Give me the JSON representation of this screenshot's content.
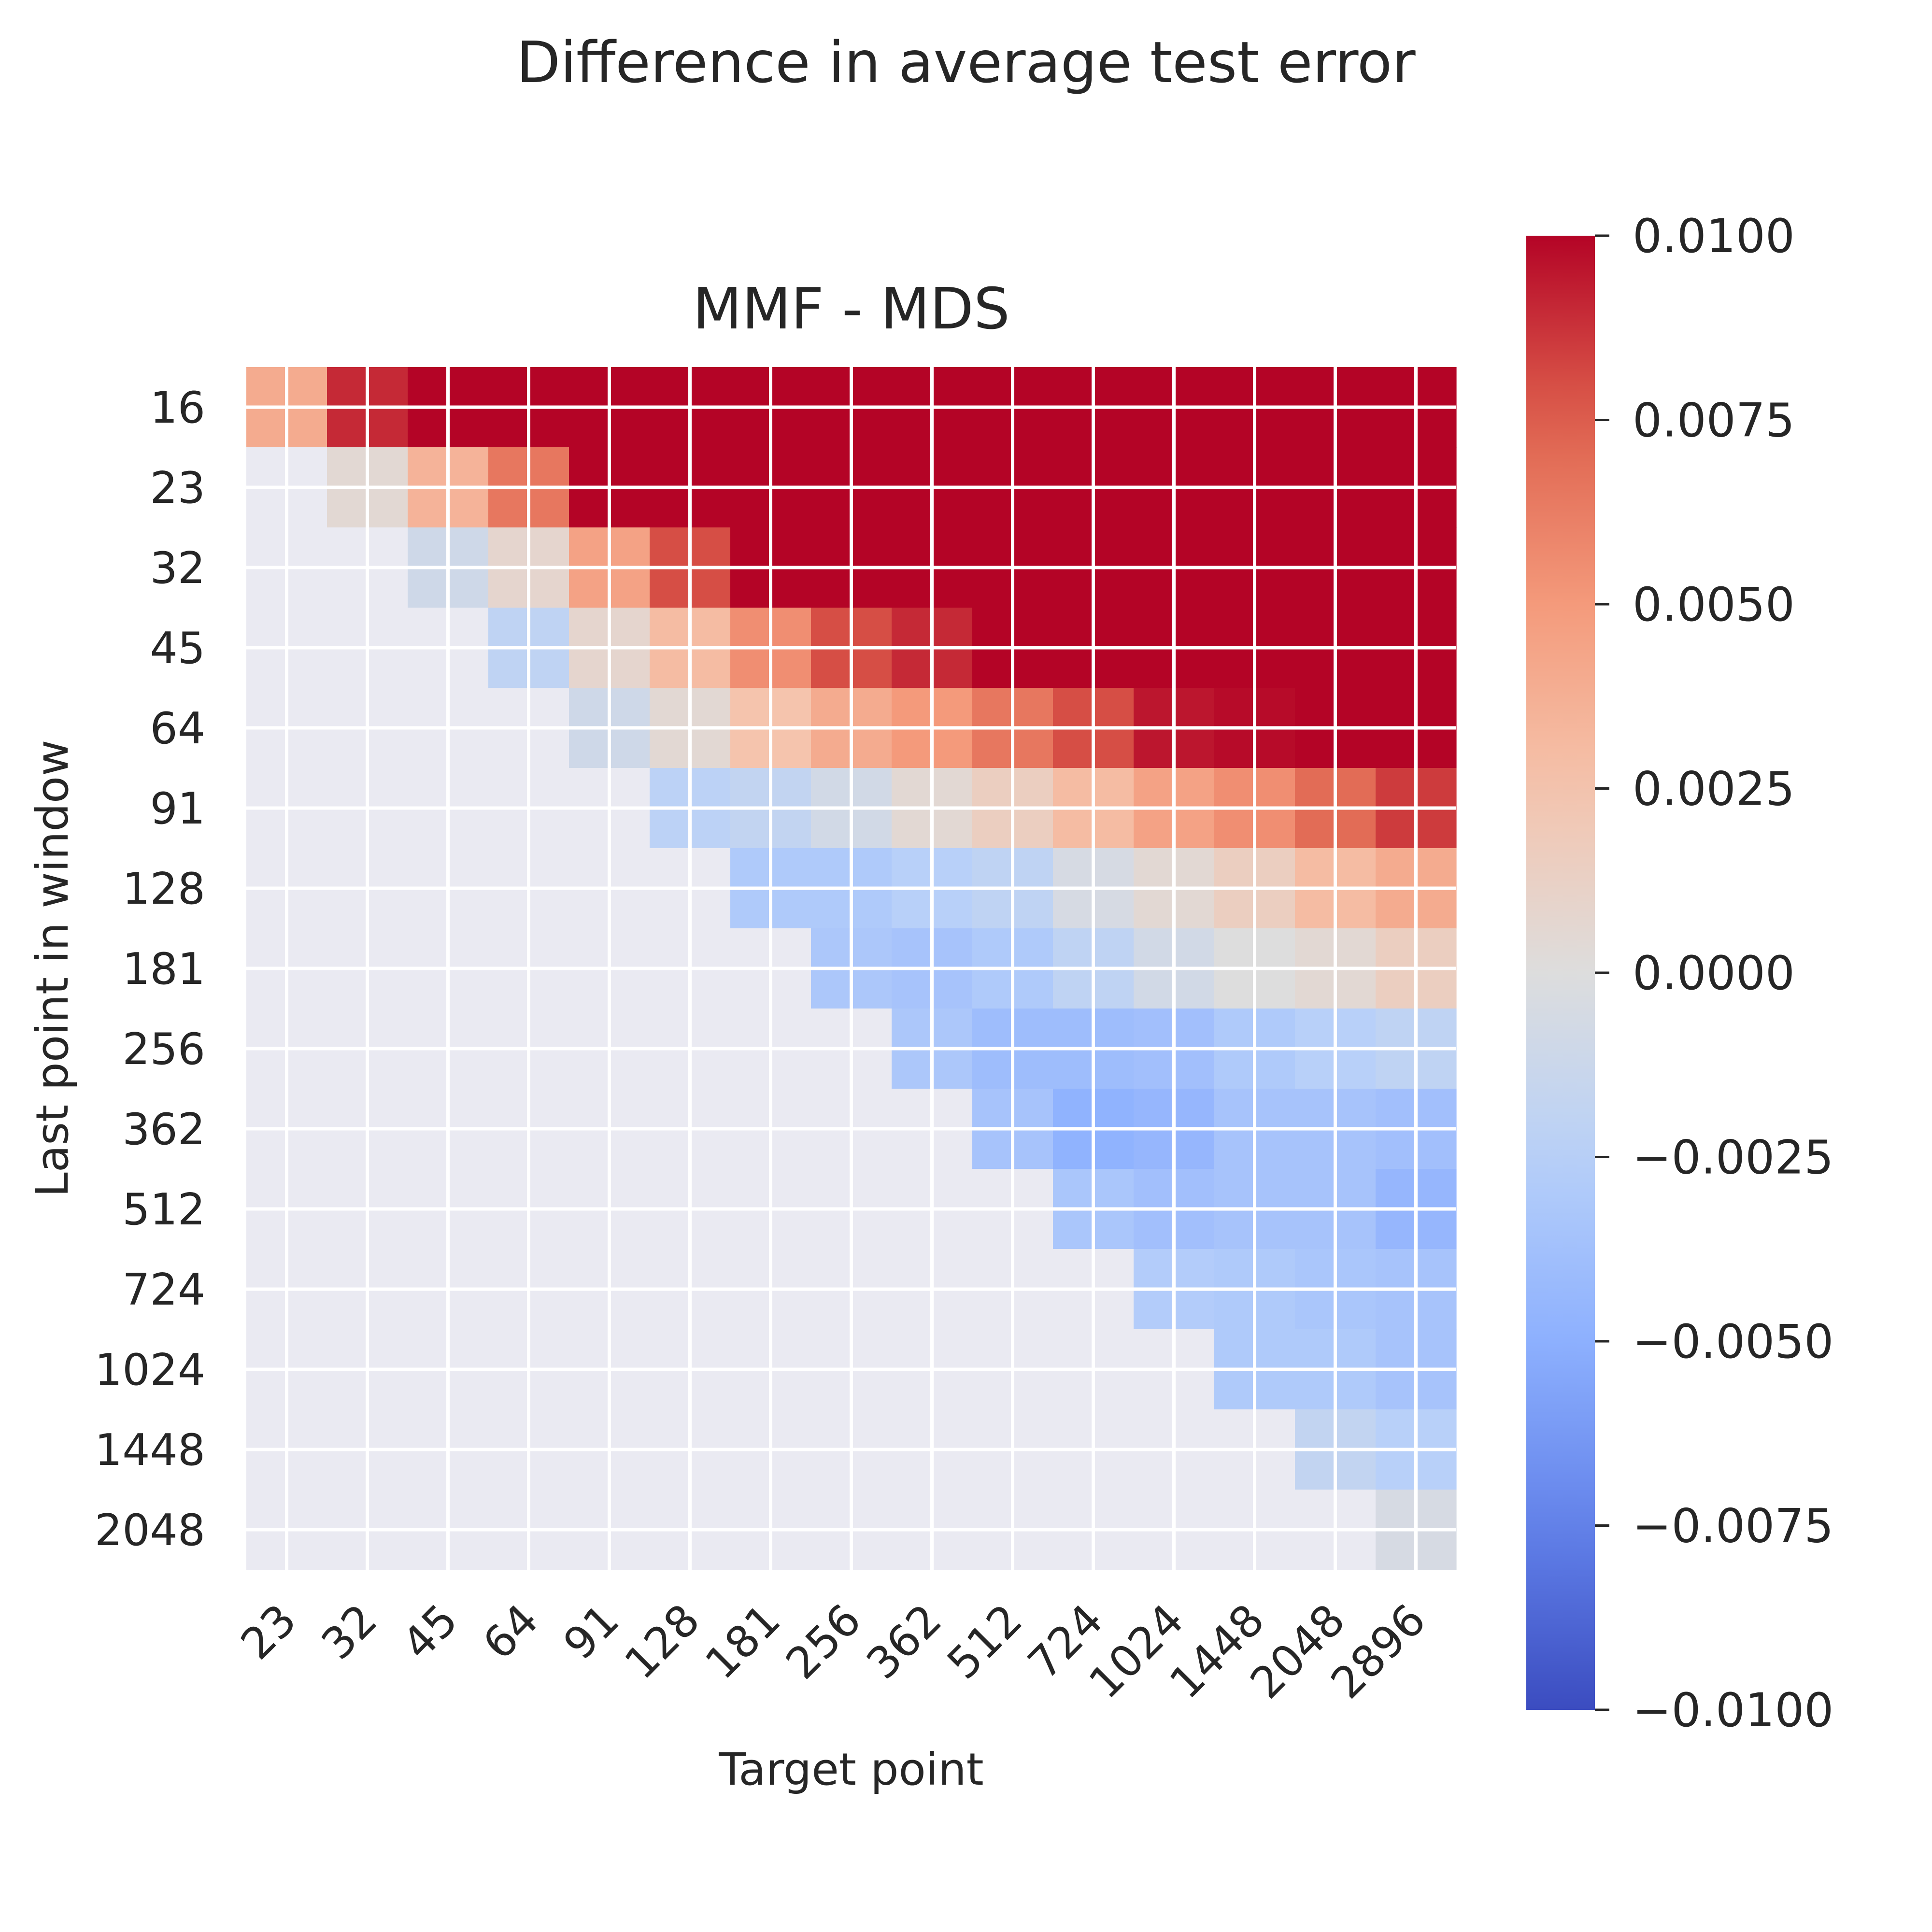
{
  "chart_data": {
    "type": "heatmap",
    "suptitle": "Difference in average test error",
    "title": "MMF - MDS",
    "xlabel": "Target point",
    "ylabel": "Last point in window",
    "x_tick_labels": [
      "23",
      "32",
      "45",
      "64",
      "91",
      "128",
      "181",
      "256",
      "362",
      "512",
      "724",
      "1024",
      "1448",
      "2048",
      "2896"
    ],
    "y_tick_labels": [
      "16",
      "23",
      "32",
      "45",
      "64",
      "91",
      "128",
      "181",
      "256",
      "362",
      "512",
      "724",
      "1024",
      "1448",
      "2048"
    ],
    "colorbar": {
      "colormap": "coolwarm",
      "vmin": -0.01,
      "vmax": 0.01,
      "tick_labels": [
        "0.0100",
        "0.0075",
        "0.0050",
        "0.0025",
        "0.0000",
        "−0.0025",
        "−0.0050",
        "−0.0075",
        "−0.0100"
      ],
      "tick_values": [
        0.01,
        0.0075,
        0.005,
        0.0025,
        0.0,
        -0.0025,
        -0.005,
        -0.0075,
        -0.01
      ]
    },
    "grid": true,
    "missing_color": "#eaeaf2",
    "values": [
      [
        0.004,
        0.009,
        0.01,
        0.01,
        0.01,
        0.01,
        0.01,
        0.01,
        0.01,
        0.01,
        0.01,
        0.01,
        0.01,
        0.01,
        0.01
      ],
      [
        null,
        0.0005,
        0.0035,
        0.0065,
        0.01,
        0.01,
        0.01,
        0.01,
        0.01,
        0.01,
        0.01,
        0.01,
        0.01,
        0.01,
        0.01
      ],
      [
        null,
        null,
        -0.001,
        0.0008,
        0.0045,
        0.008,
        0.01,
        0.01,
        0.01,
        0.01,
        0.01,
        0.01,
        0.01,
        0.01,
        0.01
      ],
      [
        null,
        null,
        null,
        -0.002,
        0.0008,
        0.003,
        0.0055,
        0.008,
        0.009,
        0.01,
        0.01,
        0.01,
        0.01,
        0.01,
        0.01
      ],
      [
        null,
        null,
        null,
        null,
        -0.001,
        0.0005,
        0.0025,
        0.004,
        0.005,
        0.0065,
        0.008,
        0.0095,
        0.0098,
        0.01,
        0.01
      ],
      [
        null,
        null,
        null,
        null,
        null,
        -0.0022,
        -0.0018,
        -0.0008,
        0.0005,
        0.0015,
        0.003,
        0.0045,
        0.0055,
        0.007,
        0.0085
      ],
      [
        null,
        null,
        null,
        null,
        null,
        null,
        -0.003,
        -0.003,
        -0.0025,
        -0.002,
        -0.0005,
        0.0005,
        0.0015,
        0.003,
        0.004
      ],
      [
        null,
        null,
        null,
        null,
        null,
        null,
        null,
        -0.0032,
        -0.0035,
        -0.003,
        -0.002,
        -0.0008,
        0.0,
        0.0005,
        0.0015
      ],
      [
        null,
        null,
        null,
        null,
        null,
        null,
        null,
        null,
        -0.0032,
        -0.004,
        -0.004,
        -0.0038,
        -0.003,
        -0.0025,
        -0.002
      ],
      [
        null,
        null,
        null,
        null,
        null,
        null,
        null,
        null,
        null,
        -0.0035,
        -0.0048,
        -0.0045,
        -0.0035,
        -0.0035,
        -0.0038
      ],
      [
        null,
        null,
        null,
        null,
        null,
        null,
        null,
        null,
        null,
        null,
        -0.0033,
        -0.0038,
        -0.0035,
        -0.0035,
        -0.0045
      ],
      [
        null,
        null,
        null,
        null,
        null,
        null,
        null,
        null,
        null,
        null,
        null,
        -0.0028,
        -0.003,
        -0.0033,
        -0.0035
      ],
      [
        null,
        null,
        null,
        null,
        null,
        null,
        null,
        null,
        null,
        null,
        null,
        null,
        -0.003,
        -0.003,
        -0.0035
      ],
      [
        null,
        null,
        null,
        null,
        null,
        null,
        null,
        null,
        null,
        null,
        null,
        null,
        null,
        -0.0018,
        -0.0025
      ],
      [
        null,
        null,
        null,
        null,
        null,
        null,
        null,
        null,
        null,
        null,
        null,
        null,
        null,
        null,
        -0.0005
      ]
    ]
  }
}
